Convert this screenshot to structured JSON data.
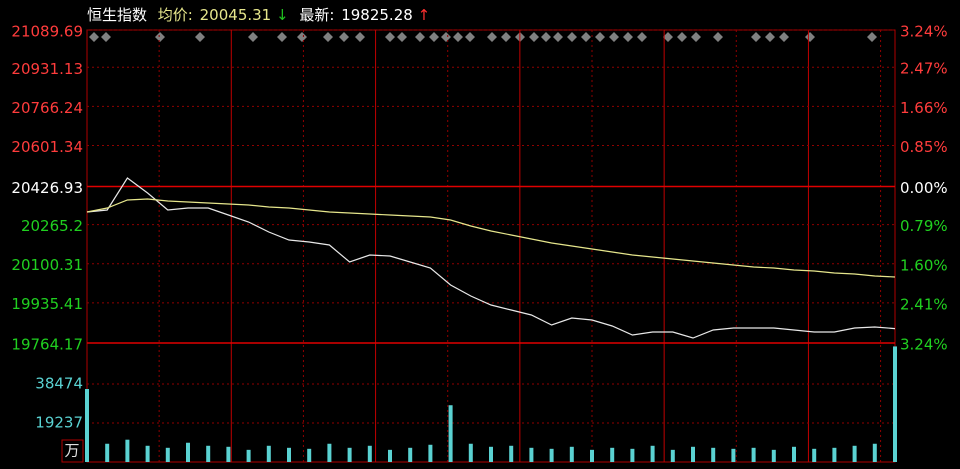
{
  "chart_data": {
    "type": "line",
    "title": "恒生指数",
    "avg_label": "均价:",
    "avg_value": 20045.31,
    "avg_arrow": "↓",
    "last_label": "最新:",
    "last_value": 19825.28,
    "last_arrow": "↑",
    "ylim": [
      19764.17,
      21089.69
    ],
    "yticks": [
      21089.69,
      20931.13,
      20766.24,
      20601.34,
      20426.93,
      20265.2,
      20100.31,
      19935.41,
      19764.17
    ],
    "y2lim": [
      -3.24,
      3.24
    ],
    "y2ticks": [
      {
        "value": 3.24,
        "label": "3.24%"
      },
      {
        "value": 2.47,
        "label": "2.47%"
      },
      {
        "value": 1.66,
        "label": "1.66%"
      },
      {
        "value": 0.85,
        "label": "0.85%"
      },
      {
        "value": 0,
        "label": "0.00%"
      },
      {
        "value": -0.79,
        "label": "0.79%"
      },
      {
        "value": -1.6,
        "label": "1.60%"
      },
      {
        "value": -2.41,
        "label": "2.41%"
      },
      {
        "value": -3.24,
        "label": "3.24%"
      }
    ],
    "series": [
      {
        "color": "#e8e8e8",
        "values": [
          20318.9,
          20327.4,
          20462.9,
          20399.4,
          20327.4,
          20335.9,
          20335.9,
          20306.2,
          20276.6,
          20234.2,
          20200.3,
          20191.9,
          20179.2,
          20107.2,
          20136.8,
          20132.6,
          20107.2,
          20081.8,
          20009.8,
          19963.2,
          19925.1,
          19903.9,
          19882.7,
          19840.4,
          19870.0,
          19861.5,
          19836.1,
          19798.0,
          19810.7,
          19810.7,
          19785.3,
          19819.2,
          19827.7,
          19827.7,
          19827.7,
          19819.2,
          19810.7,
          19810.7,
          19827.7,
          19831.9,
          19825.28
        ]
      },
      {
        "color": "#e6e68c",
        "values": [
          20318.9,
          20335.9,
          20369.7,
          20374.0,
          20365.5,
          20361.3,
          20357.0,
          20352.8,
          20348.6,
          20340.1,
          20335.9,
          20327.4,
          20318.9,
          20314.7,
          20310.5,
          20306.2,
          20302.0,
          20297.8,
          20285.0,
          20259.6,
          20238.5,
          20221.5,
          20204.6,
          20187.6,
          20174.9,
          20162.2,
          20149.5,
          20136.8,
          20128.4,
          20119.9,
          20111.4,
          20102.9,
          20094.5,
          20086.0,
          20081.8,
          20073.3,
          20069.1,
          20060.6,
          20056.4,
          20047.9,
          20043.7
        ]
      }
    ],
    "volume": {
      "unit": "万",
      "ylim": [
        0,
        57711
      ],
      "yticks": [
        19237,
        38474
      ],
      "color": "#5ad2d2",
      "values": [
        36000,
        9000,
        11000,
        8000,
        7000,
        9500,
        8000,
        7500,
        6000,
        8000,
        7000,
        6500,
        9000,
        7000,
        8000,
        6000,
        7000,
        8500,
        28000,
        9000,
        7500,
        8000,
        7000,
        6500,
        7500,
        6000,
        7000,
        6500,
        8000,
        6000,
        7500,
        7000,
        6500,
        7000,
        6000,
        7500,
        6500,
        7000,
        8000,
        9000,
        57000
      ]
    }
  }
}
